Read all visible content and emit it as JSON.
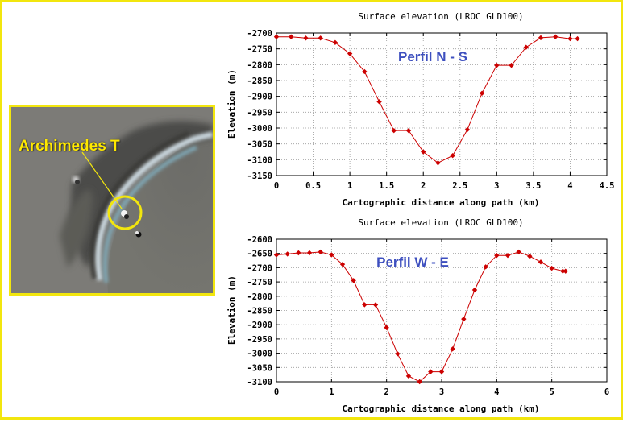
{
  "image_label": {
    "crater_name": "Archimedes T"
  },
  "colors": {
    "frame": "#f2e60e",
    "series": "#cc0000",
    "annotation": "#3d4fbf",
    "label": "#ffe900"
  },
  "chart_data": [
    {
      "type": "line",
      "title": "Surface elevation (LROC GLD100)",
      "annotation": "Perfil N - S",
      "xlabel": "Cartographic distance along path (km)",
      "ylabel": "Elevation (m)",
      "xlim": [
        0,
        4.5
      ],
      "ylim": [
        -3150,
        -2700
      ],
      "xticks": [
        0,
        0.5,
        1,
        1.5,
        2,
        2.5,
        3,
        3.5,
        4,
        4.5
      ],
      "xtick_labels": [
        "0",
        "0.5",
        "1",
        "1.5",
        "2",
        "2.5",
        "3",
        "3.5",
        "4",
        "4.5"
      ],
      "yticks": [
        -2700,
        -2750,
        -2800,
        -2850,
        -2900,
        -2950,
        -3000,
        -3050,
        -3100,
        -3150
      ],
      "ytick_labels": [
        "-2700",
        "-2750",
        "-2800",
        "-2850",
        "-2900",
        "-2950",
        "-3000",
        "-3050",
        "-3100",
        "-3150"
      ],
      "grid": true,
      "series": [
        {
          "x": [
            0,
            0.2,
            0.4,
            0.6,
            0.8,
            1.0,
            1.2,
            1.4,
            1.6,
            1.8,
            2.0,
            2.2,
            2.4,
            2.6,
            2.8,
            3.0,
            3.2,
            3.4,
            3.6,
            3.8,
            4.0,
            4.1
          ],
          "y": [
            -2712,
            -2712,
            -2716,
            -2716,
            -2730,
            -2765,
            -2822,
            -2917,
            -3008,
            -3008,
            -3075,
            -3110,
            -3087,
            -3005,
            -2890,
            -2802,
            -2802,
            -2745,
            -2715,
            -2712,
            -2718,
            -2718
          ]
        }
      ]
    },
    {
      "type": "line",
      "title": "Surface elevation (LROC GLD100)",
      "annotation": "Perfil W - E",
      "xlabel": "Cartographic distance along path (km)",
      "ylabel": "Elevation (m)",
      "xlim": [
        0,
        6
      ],
      "ylim": [
        -3100,
        -2600
      ],
      "xticks": [
        0,
        1,
        2,
        3,
        4,
        5,
        6
      ],
      "xtick_labels": [
        "0",
        "1",
        "2",
        "3",
        "4",
        "5",
        "6"
      ],
      "yticks": [
        -2600,
        -2650,
        -2700,
        -2750,
        -2800,
        -2850,
        -2900,
        -2950,
        -3000,
        -3050,
        -3100
      ],
      "ytick_labels": [
        "-2600",
        "-2650",
        "-2700",
        "-2750",
        "-2800",
        "-2850",
        "-2900",
        "-2950",
        "-3000",
        "-3050",
        "-3100"
      ],
      "grid": true,
      "series": [
        {
          "x": [
            0,
            0.2,
            0.4,
            0.6,
            0.8,
            1.0,
            1.2,
            1.4,
            1.6,
            1.8,
            2.0,
            2.2,
            2.4,
            2.6,
            2.8,
            3.0,
            3.2,
            3.4,
            3.6,
            3.8,
            4.0,
            4.2,
            4.4,
            4.6,
            4.8,
            5.0,
            5.2,
            5.25
          ],
          "y": [
            -2655,
            -2652,
            -2648,
            -2648,
            -2645,
            -2655,
            -2688,
            -2745,
            -2830,
            -2830,
            -2910,
            -3002,
            -3080,
            -3100,
            -3065,
            -3065,
            -2985,
            -2880,
            -2778,
            -2697,
            -2657,
            -2657,
            -2645,
            -2660,
            -2680,
            -2702,
            -2712,
            -2712
          ]
        }
      ]
    }
  ]
}
